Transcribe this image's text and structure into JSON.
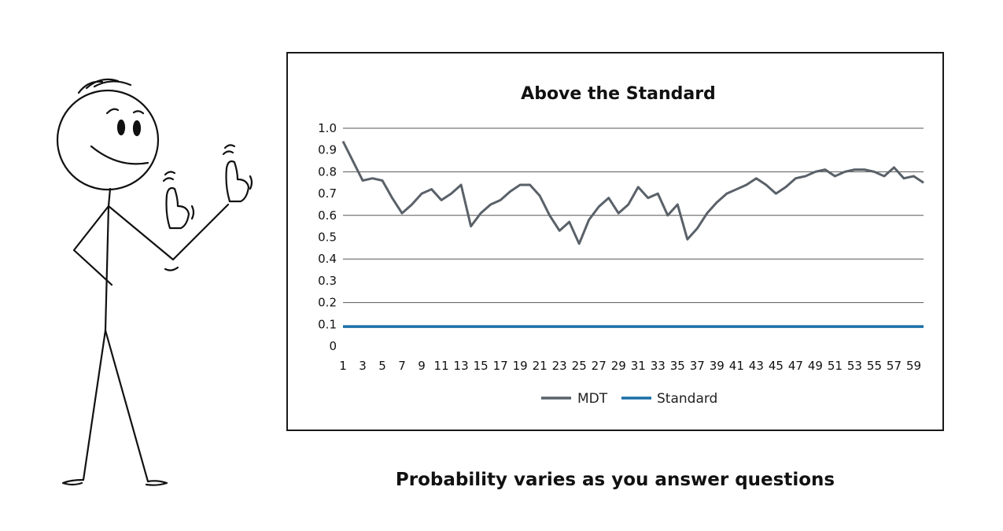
{
  "caption": "Probability varies as you answer questions",
  "chart_data": {
    "type": "line",
    "title": "Above the Standard",
    "xlabel": "",
    "ylabel": "",
    "ylim": [
      0,
      1.0
    ],
    "yticks": [
      "0",
      "0.1",
      "0.2",
      "0.3",
      "0.4",
      "0.5",
      "0.6",
      "0.7",
      "0.8",
      "0.9",
      "1.0"
    ],
    "xticks": [
      "1",
      "3",
      "5",
      "7",
      "9",
      "11",
      "13",
      "15",
      "17",
      "19",
      "21",
      "23",
      "25",
      "27",
      "29",
      "31",
      "33",
      "35",
      "37",
      "39",
      "41",
      "43",
      "45",
      "47",
      "49",
      "51",
      "53",
      "55",
      "57",
      "59"
    ],
    "x": [
      1,
      2,
      3,
      4,
      5,
      6,
      7,
      8,
      9,
      10,
      11,
      12,
      13,
      14,
      15,
      16,
      17,
      18,
      19,
      20,
      21,
      22,
      23,
      24,
      25,
      26,
      27,
      28,
      29,
      30,
      31,
      32,
      33,
      34,
      35,
      36,
      37,
      38,
      39,
      40,
      41,
      42,
      43,
      44,
      45,
      46,
      47,
      48,
      49,
      50,
      51,
      52,
      53,
      54,
      55,
      56,
      57,
      58,
      59,
      60
    ],
    "grid": true,
    "legend": "bottom",
    "series": [
      {
        "name": "MDT",
        "color": "#5a6169",
        "values": [
          0.94,
          0.85,
          0.76,
          0.77,
          0.76,
          0.68,
          0.61,
          0.65,
          0.7,
          0.72,
          0.67,
          0.7,
          0.74,
          0.55,
          0.61,
          0.65,
          0.67,
          0.71,
          0.74,
          0.74,
          0.69,
          0.6,
          0.53,
          0.57,
          0.47,
          0.58,
          0.64,
          0.68,
          0.61,
          0.65,
          0.73,
          0.68,
          0.7,
          0.6,
          0.65,
          0.49,
          0.54,
          0.61,
          0.66,
          0.7,
          0.72,
          0.74,
          0.77,
          0.74,
          0.7,
          0.73,
          0.77,
          0.78,
          0.8,
          0.81,
          0.78,
          0.8,
          0.81,
          0.81,
          0.8,
          0.78,
          0.82,
          0.77,
          0.78,
          0.75
        ]
      },
      {
        "name": "Standard",
        "color": "#1a6fa8",
        "values": [
          0.09,
          0.09,
          0.09,
          0.09,
          0.09,
          0.09,
          0.09,
          0.09,
          0.09,
          0.09,
          0.09,
          0.09,
          0.09,
          0.09,
          0.09,
          0.09,
          0.09,
          0.09,
          0.09,
          0.09,
          0.09,
          0.09,
          0.09,
          0.09,
          0.09,
          0.09,
          0.09,
          0.09,
          0.09,
          0.09,
          0.09,
          0.09,
          0.09,
          0.09,
          0.09,
          0.09,
          0.09,
          0.09,
          0.09,
          0.09,
          0.09,
          0.09,
          0.09,
          0.09,
          0.09,
          0.09,
          0.09,
          0.09,
          0.09,
          0.09,
          0.09,
          0.09,
          0.09,
          0.09,
          0.09,
          0.09,
          0.09,
          0.09,
          0.09,
          0.09
        ]
      }
    ]
  }
}
